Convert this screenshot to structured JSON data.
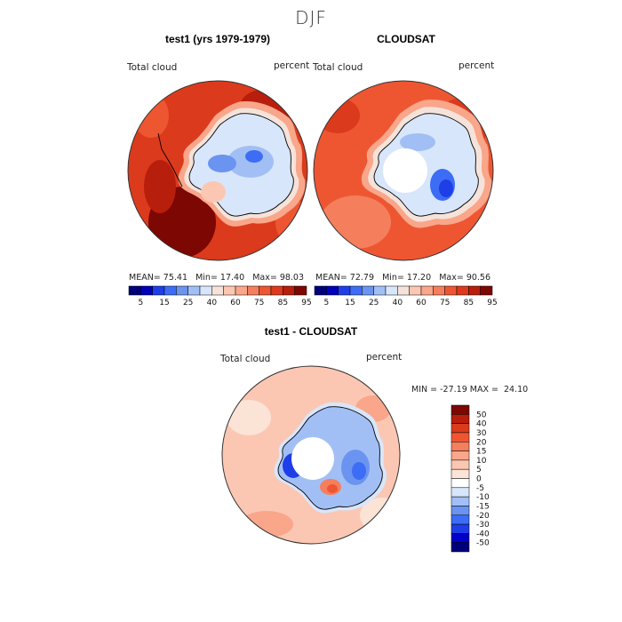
{
  "title": "DJF",
  "colors": {
    "abs_scale": [
      "#00007a",
      "#0000b8",
      "#1e3ee8",
      "#3d6cf5",
      "#6b93f0",
      "#a2bff5",
      "#d8e6fb",
      "#f5e3da",
      "#fbc7b3",
      "#f9a68a",
      "#f57e5c",
      "#ee5632",
      "#dc3a1c",
      "#b81e0c",
      "#7d0703"
    ],
    "diff_scale": [
      "#00007a",
      "#0000c8",
      "#1e3ee8",
      "#3d6cf5",
      "#6b93f0",
      "#a2bff5",
      "#d8e6fb",
      "#ffffff",
      "#fbe3d6",
      "#fbc7b3",
      "#f9a68a",
      "#f57e5c",
      "#ee5632",
      "#dc3a1c",
      "#b81e0c",
      "#7d0703"
    ],
    "coast": "#000000"
  },
  "panels": {
    "left": {
      "title": "test1 (yrs 1979-1979)",
      "var_label": "Total cloud",
      "units": "percent",
      "stats": {
        "mean_label": "MEAN=",
        "mean": "75.41",
        "min_label": "Min=",
        "min": "17.40",
        "max_label": "Max=",
        "max": "98.03"
      }
    },
    "right": {
      "title": "CLOUDSAT",
      "var_label": "Total cloud",
      "units": "percent",
      "stats": {
        "mean_label": "MEAN=",
        "mean": "72.79",
        "min_label": "Min=",
        "min": "17.20",
        "max_label": "Max=",
        "max": "90.56"
      }
    },
    "diff": {
      "title": "test1 - CLOUDSAT",
      "var_label": "Total cloud",
      "units": "percent",
      "stats": {
        "min_label": "MIN =",
        "min": "-27.19",
        "max_label": "MAX =",
        "max": "24.10"
      }
    }
  },
  "abs_colorbar_labels": [
    "5",
    "15",
    "25",
    "40",
    "60",
    "75",
    "85",
    "95"
  ],
  "diff_colorbar_labels": [
    "50",
    "40",
    "30",
    "20",
    "15",
    "10",
    "5",
    "0",
    "-5",
    "-10",
    "-15",
    "-20",
    "-30",
    "-40",
    "-50"
  ]
}
